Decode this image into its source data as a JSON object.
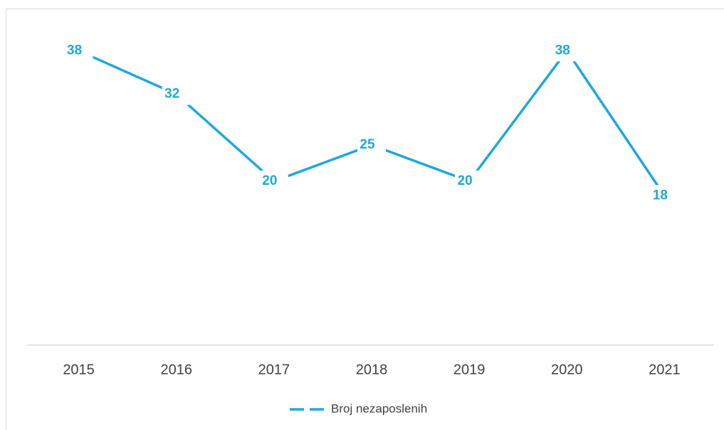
{
  "chart_data": {
    "type": "line",
    "categories": [
      "2015",
      "2016",
      "2017",
      "2018",
      "2019",
      "2020",
      "2021"
    ],
    "series": [
      {
        "name": "Broj nezaposlenih",
        "color": "#1ea7de",
        "values": [
          38,
          32,
          20,
          25,
          20,
          38,
          18
        ]
      }
    ],
    "ylim": [
      0,
      40
    ],
    "legend": "bottom"
  }
}
